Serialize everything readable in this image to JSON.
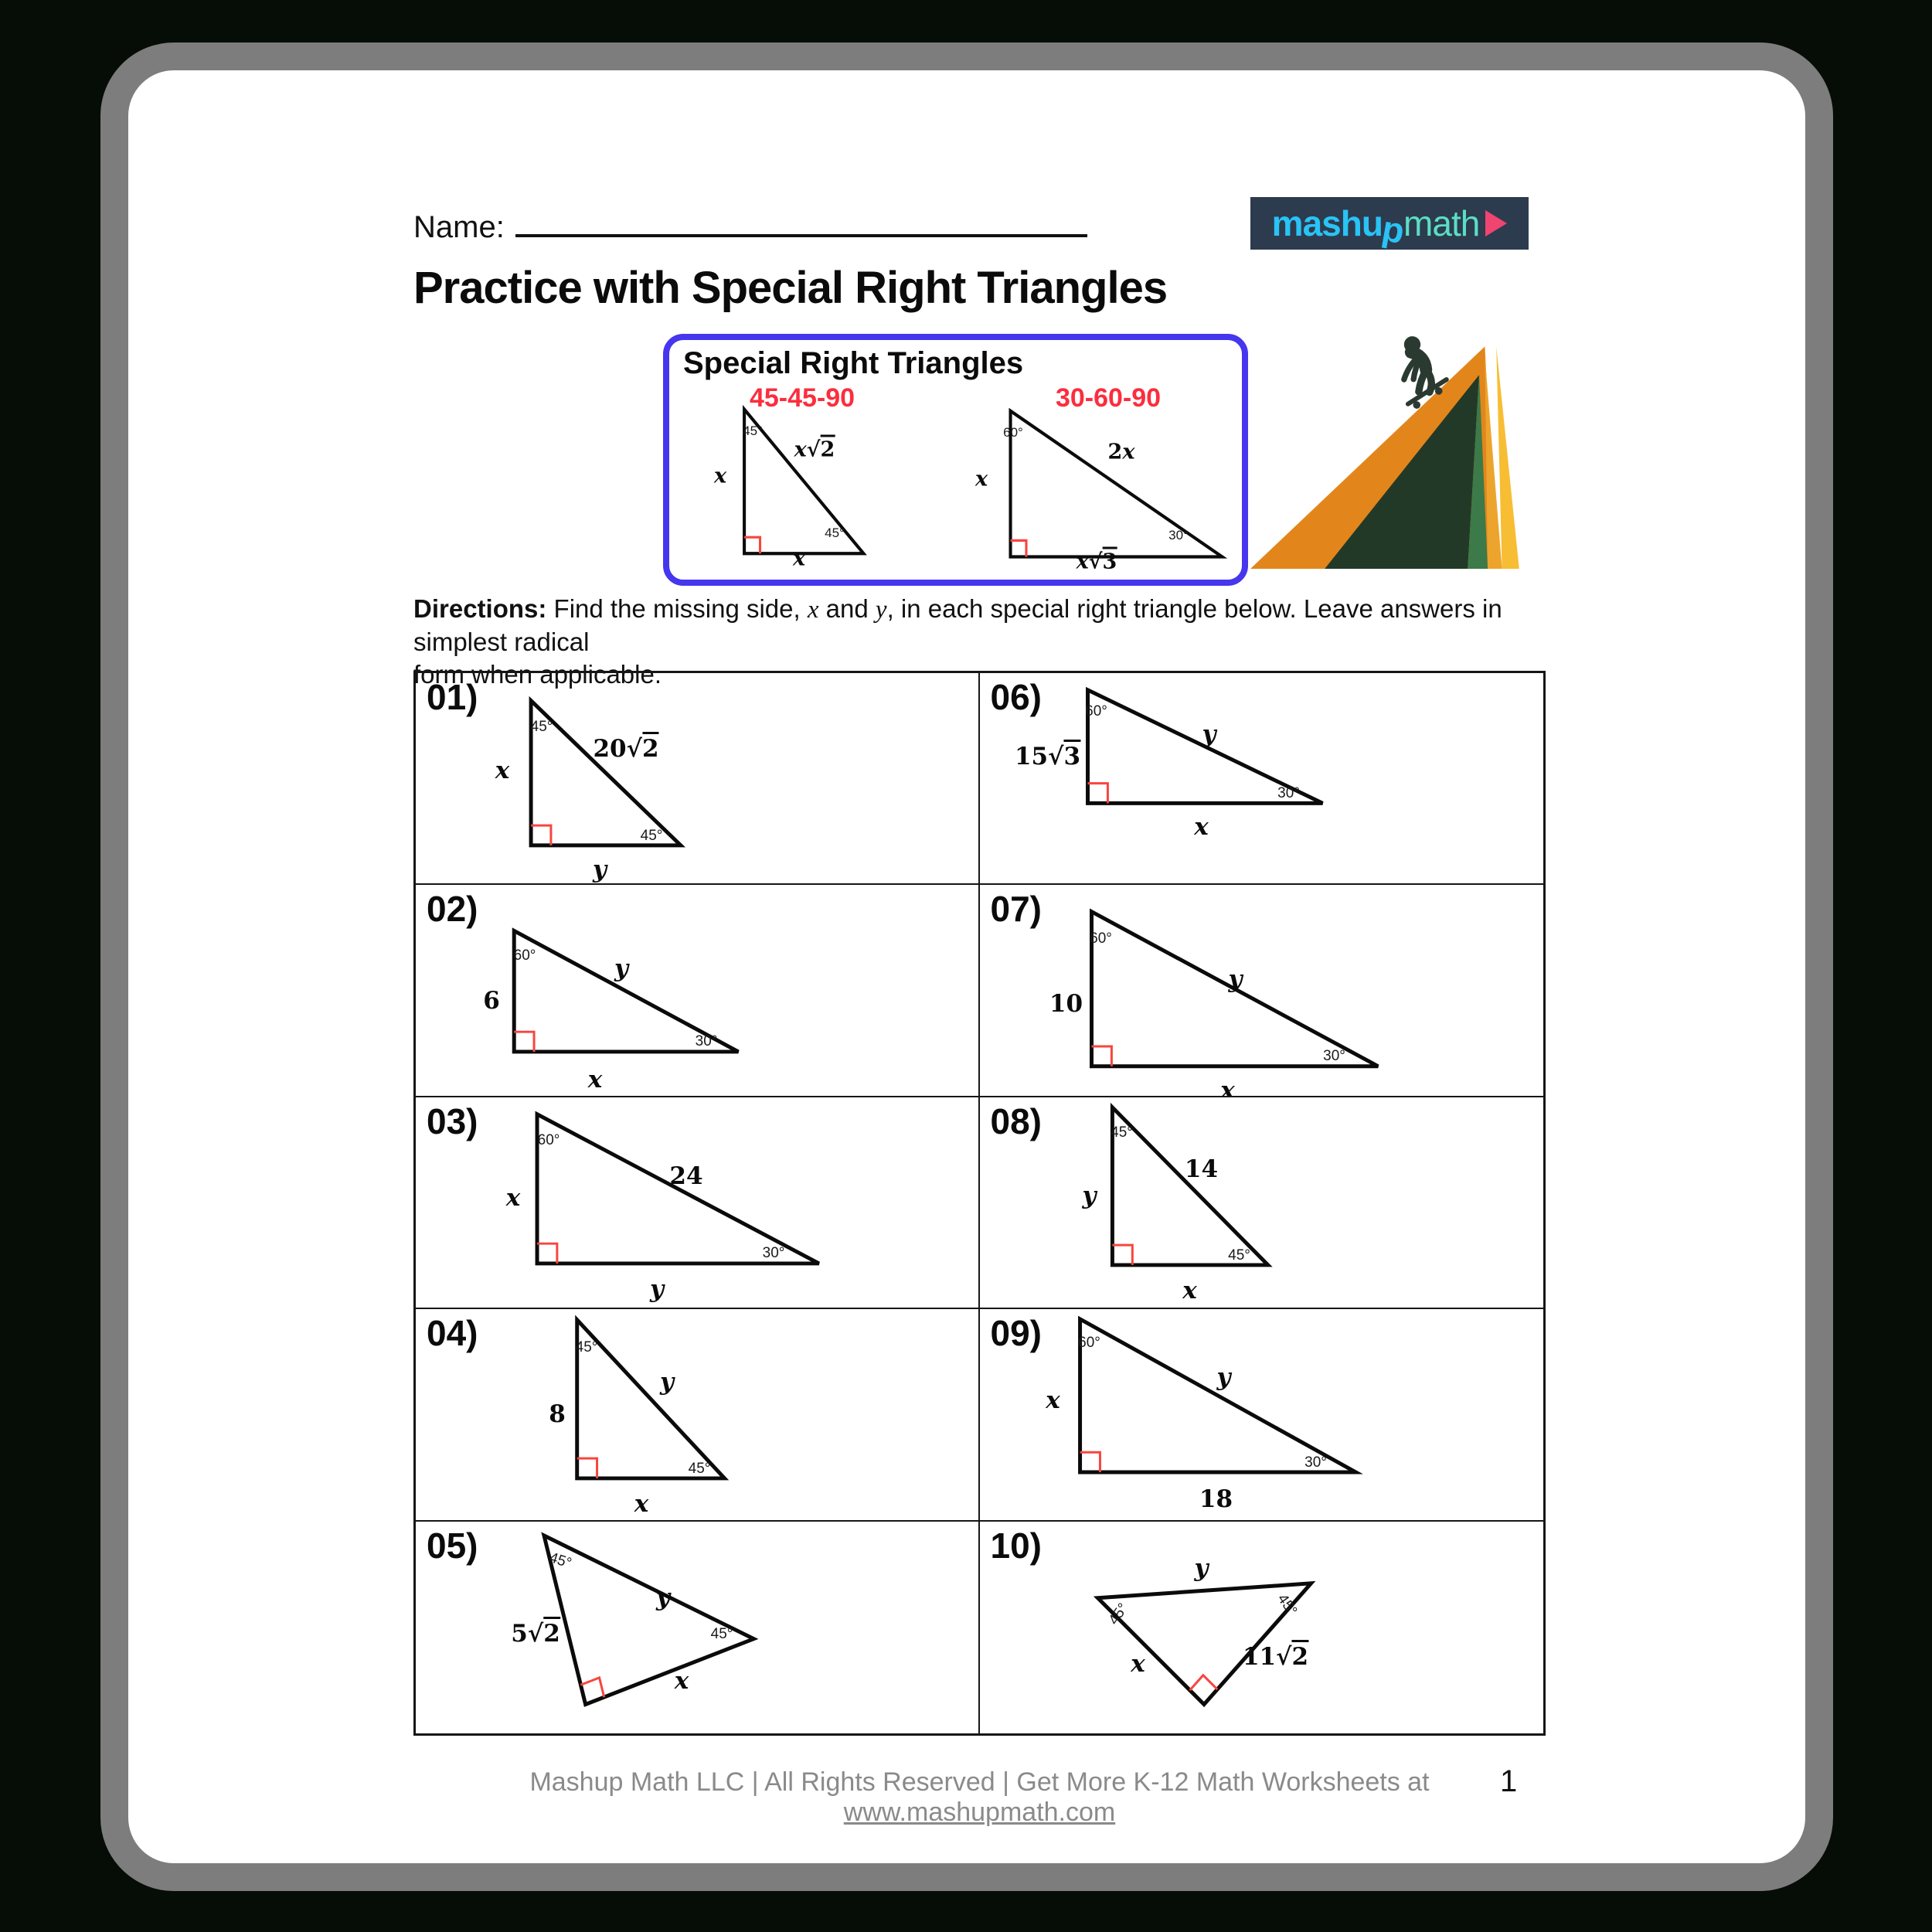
{
  "header": {
    "name_label": "Name:",
    "title": "Practice with Special Right Triangles"
  },
  "logo": {
    "word1": "mashup",
    "word2": "math",
    "bg": "#2d3b4f",
    "color1": "#29c3f5",
    "color2": "#5adfc4",
    "arrow_color": "#ef4570"
  },
  "reference_box": {
    "heading": "Special Right Triangles",
    "border_color": "#4636ee",
    "label_color": "#fb2e3e",
    "diagrams": [
      {
        "name": "45-45-90",
        "angles": [
          "45°",
          "45°"
        ],
        "sides": [
          "x",
          "x√2",
          "x"
        ]
      },
      {
        "name": "30-60-90",
        "angles": [
          "60°",
          "30°"
        ],
        "sides": [
          "x",
          "2x",
          "x√3"
        ]
      }
    ]
  },
  "directions": {
    "label": "Directions:",
    "t1": " Find the missing side, ",
    "v1": "x",
    "t2": " and ",
    "v2": "y",
    "t3": ", in each special right triangle below. Leave answers in simplest radical",
    "line2": "form when applicable."
  },
  "problems": [
    {
      "number": "01)",
      "type": "45-45-90",
      "angles": [
        "45°",
        "45°"
      ],
      "sides": [
        "x",
        "20√2",
        "y"
      ]
    },
    {
      "number": "02)",
      "type": "30-60-90",
      "angles": [
        "60°",
        "30°"
      ],
      "sides": [
        "6",
        "y",
        "x"
      ]
    },
    {
      "number": "03)",
      "type": "30-60-90",
      "angles": [
        "60°",
        "30°"
      ],
      "sides": [
        "x",
        "24",
        "y"
      ]
    },
    {
      "number": "04)",
      "type": "45-45-90",
      "angles": [
        "45°",
        "45°"
      ],
      "sides": [
        "8",
        "y",
        "x"
      ]
    },
    {
      "number": "05)",
      "type": "45-45-90",
      "angles": [
        "45°",
        "45°"
      ],
      "sides": [
        "5√2",
        "y",
        "x"
      ]
    },
    {
      "number": "06)",
      "type": "30-60-90",
      "angles": [
        "60°",
        "30°"
      ],
      "sides": [
        "15√3",
        "y",
        "x"
      ]
    },
    {
      "number": "07)",
      "type": "30-60-90",
      "angles": [
        "60°",
        "30°"
      ],
      "sides": [
        "10",
        "y",
        "x"
      ]
    },
    {
      "number": "08)",
      "type": "45-45-90",
      "angles": [
        "45°",
        "45°"
      ],
      "sides": [
        "y",
        "14",
        "x"
      ]
    },
    {
      "number": "09)",
      "type": "30-60-90",
      "angles": [
        "60°",
        "30°"
      ],
      "sides": [
        "x",
        "y",
        "18"
      ]
    },
    {
      "number": "10)",
      "type": "45-45-90",
      "angles": [
        "45°",
        "45°"
      ],
      "sides": [
        "x",
        "11√2",
        "y"
      ]
    }
  ],
  "footer": {
    "text_before_link": "Mashup Math LLC | All Rights Reserved | Get More K-12 Math Worksheets at ",
    "link": "www.mashupmath.com",
    "page_number": "1"
  },
  "colors": {
    "right_angle_marker": "#f8453f",
    "triangle_stroke": "#0b0b0b"
  }
}
